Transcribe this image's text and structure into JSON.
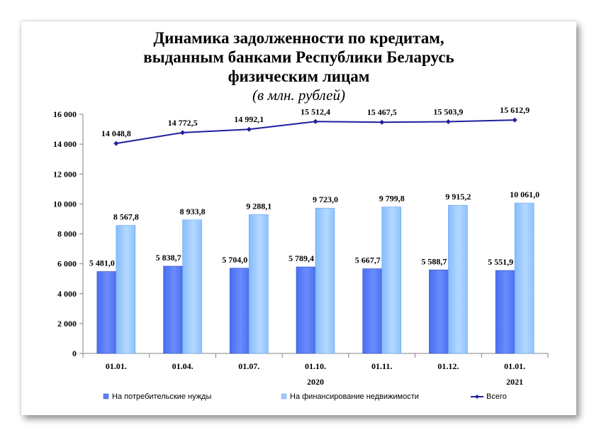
{
  "chart_data": {
    "type": "bar",
    "title": [
      "Динамика задолженности по кредитам,",
      "выданным банками Республики Беларусь",
      "физическим лицам"
    ],
    "subtitle": "(в млн. рублей)",
    "categories": [
      "01.01.",
      "01.04.",
      "01.07.",
      "01.10.",
      "01.11.",
      "01.12.",
      "01.01."
    ],
    "group_labels": [
      {
        "label": "2020",
        "category_index": 3
      },
      {
        "label": "2021",
        "category_index": 6
      }
    ],
    "ylim": [
      0,
      16000
    ],
    "y_ticks": [
      "0",
      "2 000",
      "4 000",
      "6 000",
      "8 000",
      "10 000",
      "12 000",
      "14 000",
      "16 000"
    ],
    "y_tick_values": [
      0,
      2000,
      4000,
      6000,
      8000,
      10000,
      12000,
      14000,
      16000
    ],
    "grid": false,
    "legend_position": "bottom",
    "series": [
      {
        "name": "На потребительские нужды",
        "type": "bar",
        "color": "#5b7ff5",
        "values": [
          5481.0,
          5838.7,
          5704.0,
          5789.4,
          5667.7,
          5588.7,
          5551.9
        ],
        "labels": [
          "5 481,0",
          "5 838,7",
          "5 704,0",
          "5 789,4",
          "5 667,7",
          "5 588,7",
          "5 551,9"
        ]
      },
      {
        "name": "На финансирование недвижимости",
        "type": "bar",
        "color": "#9ccaff",
        "values": [
          8567.8,
          8933.8,
          9288.1,
          9723.0,
          9799.8,
          9915.2,
          10061.0
        ],
        "labels": [
          "8 567,8",
          "8 933,8",
          "9 288,1",
          "9 723,0",
          "9 799,8",
          "9 915,2",
          "10 061,0"
        ]
      },
      {
        "name": "Всего",
        "type": "line",
        "color": "#1f1f9e",
        "values": [
          14048.8,
          14772.5,
          14992.1,
          15512.4,
          15467.5,
          15503.9,
          15612.9
        ],
        "labels": [
          "14 048,8",
          "14 772,5",
          "14 992,1",
          "15 512,4",
          "15 467,5",
          "15 503,9",
          "15 612,9"
        ]
      }
    ]
  }
}
